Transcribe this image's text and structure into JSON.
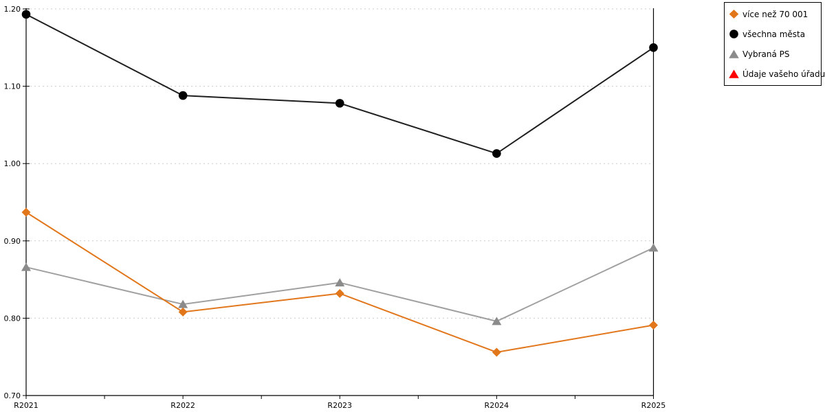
{
  "chart_data": {
    "type": "line",
    "title": "",
    "categories": [
      "R2021",
      "R2022",
      "R2023",
      "R2024",
      "R2025"
    ],
    "series": [
      {
        "name": "více než 70 001",
        "marker": "diamond",
        "color": "#E2761B",
        "values": [
          0.937,
          0.808,
          0.832,
          0.756,
          0.791
        ]
      },
      {
        "name": "všechna města",
        "marker": "circle",
        "color": "#000000",
        "line_color": "#1F1F1F",
        "values": [
          1.193,
          1.088,
          1.078,
          1.013,
          1.15
        ]
      },
      {
        "name": "Vybraná PS",
        "marker": "triangle",
        "color": "#8B8B8B",
        "line_color": "#A0A0A0",
        "values": [
          0.866,
          0.818,
          0.846,
          0.796,
          0.891
        ]
      },
      {
        "name": "Údaje vašeho úřadu",
        "marker": "triangle",
        "color": "#FF0000",
        "values": []
      }
    ],
    "ylim": [
      0.7,
      1.2
    ],
    "y_ticks": [
      "0.70",
      "0.80",
      "0.90",
      "1.00",
      "1.10",
      "1.20"
    ],
    "x_minor_ticks_between_categories": true,
    "grid": "horizontal-dotted",
    "grid_color": "#CBCBCB",
    "axis_color": "#000000",
    "legend_position": "top-right",
    "background": "#FFFFFF"
  }
}
